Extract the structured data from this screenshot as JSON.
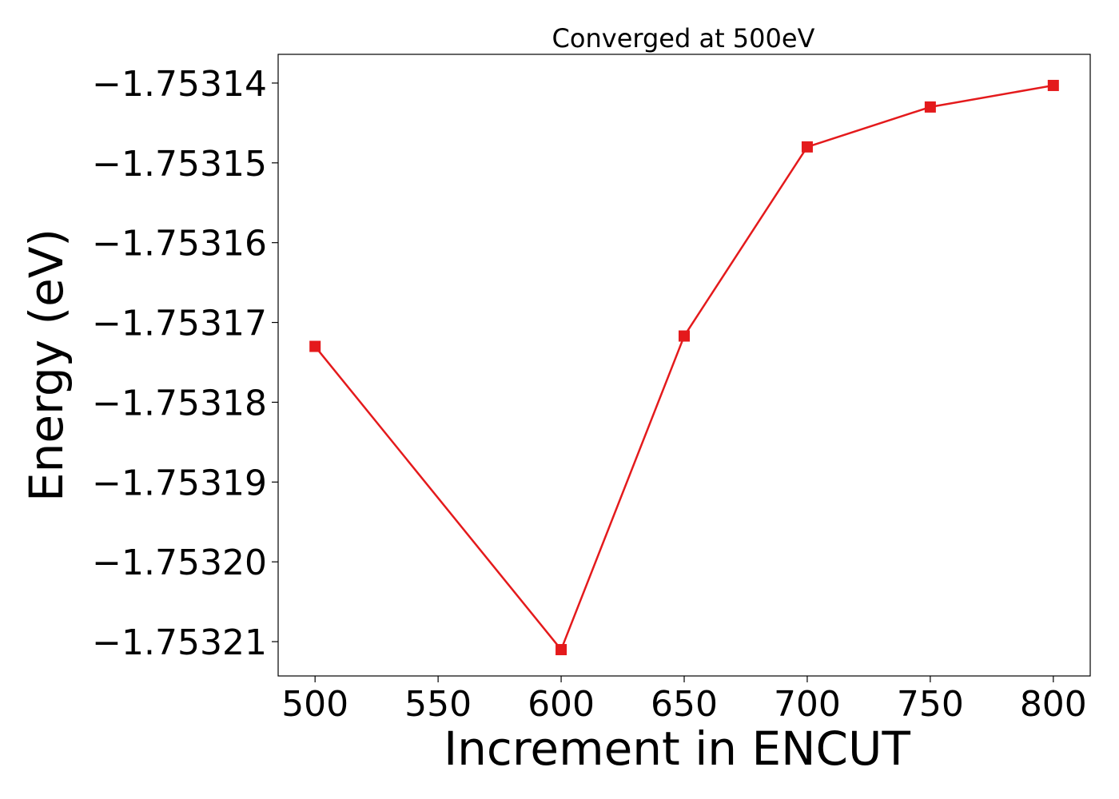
{
  "chart_data": {
    "type": "line",
    "title": "Converged at 500eV",
    "xlabel": "Increment in ENCUT",
    "ylabel": "Energy (eV)",
    "x": [
      500,
      600,
      650,
      700,
      750,
      800
    ],
    "series": [
      {
        "values": [
          -1.753173,
          -1.753211,
          -1.7531717,
          -1.753148,
          -1.753143,
          -1.7531403
        ],
        "color": "#e41a1c",
        "marker": "square"
      }
    ],
    "xticks": [
      500,
      550,
      600,
      650,
      700,
      750,
      800
    ],
    "xtick_labels": [
      "500",
      "550",
      "600",
      "650",
      "700",
      "750",
      "800"
    ],
    "yticks": [
      -1.75314,
      -1.75315,
      -1.75316,
      -1.75317,
      -1.75318,
      -1.75319,
      -1.7532,
      -1.75321
    ],
    "ytick_labels": [
      "−1.75314",
      "−1.75315",
      "−1.75316",
      "−1.75317",
      "−1.75318",
      "−1.75319",
      "−1.75320",
      "−1.75321"
    ],
    "xlim": [
      485,
      815
    ],
    "ylim": [
      -1.7532143,
      -1.7531364
    ],
    "grid": false,
    "legend": "none"
  }
}
